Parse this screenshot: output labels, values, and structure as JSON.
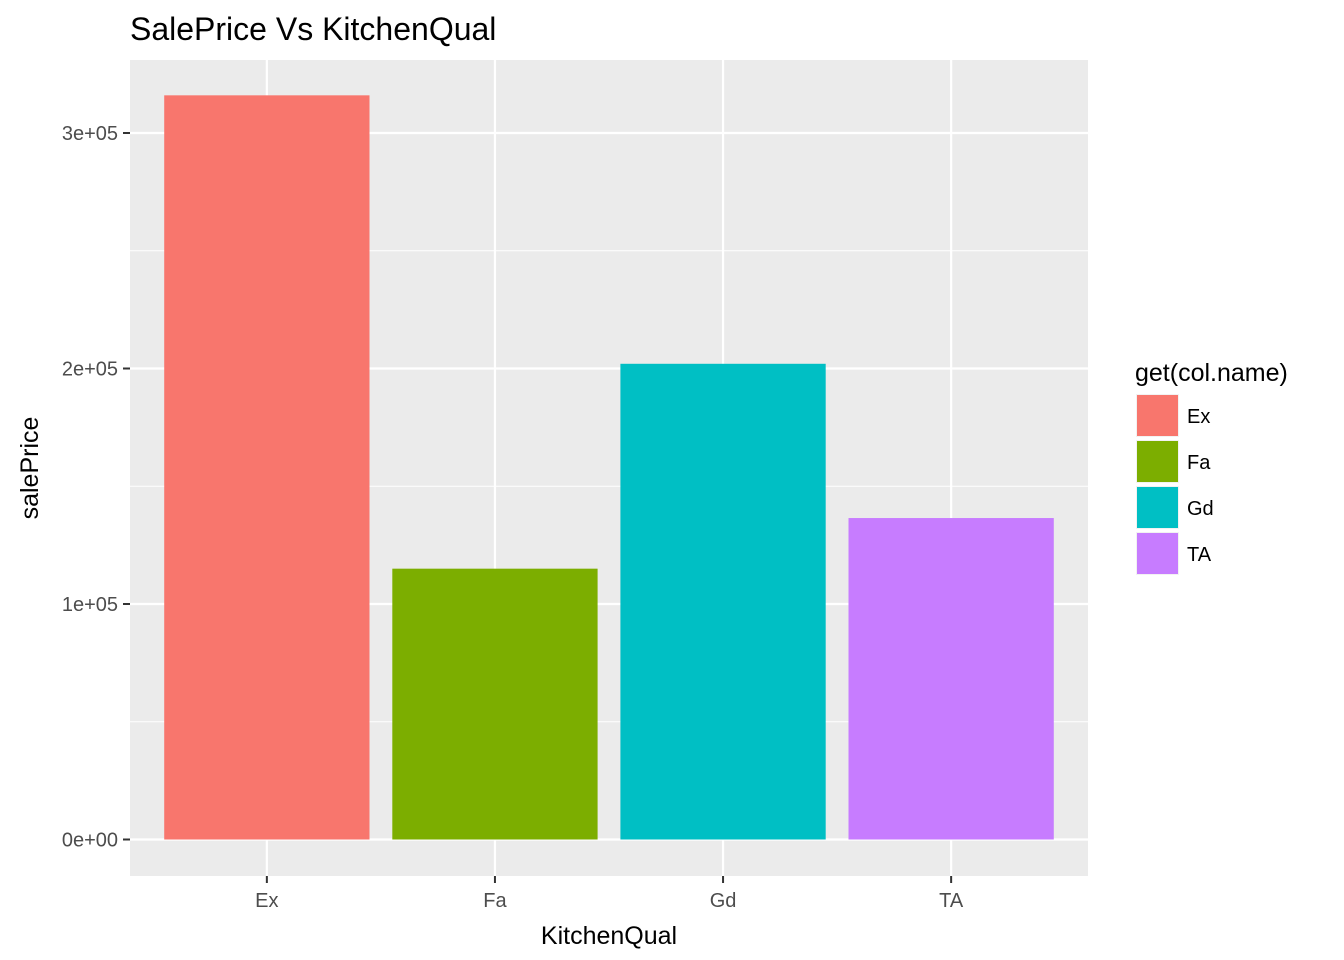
{
  "chart_data": {
    "type": "bar",
    "title": "SalePrice Vs KitchenQual",
    "xlabel": "KitchenQual",
    "ylabel": "salePrice",
    "categories": [
      "Ex",
      "Fa",
      "Gd",
      "TA"
    ],
    "values": [
      316000,
      115000,
      202000,
      136500
    ],
    "colors": [
      "#F8766D",
      "#7CAE00",
      "#00BFC4",
      "#C77CFF"
    ],
    "ylim": [
      -15500,
      331000
    ],
    "yticks": [
      0,
      100000,
      200000,
      300000
    ],
    "ytick_labels": [
      "0e+00",
      "1e+05",
      "2e+05",
      "3e+05"
    ],
    "grid": true,
    "panel_background": "#EBEBEB",
    "legend": {
      "title": "get(col.name)",
      "position": "right",
      "entries": [
        "Ex",
        "Fa",
        "Gd",
        "TA"
      ]
    }
  }
}
